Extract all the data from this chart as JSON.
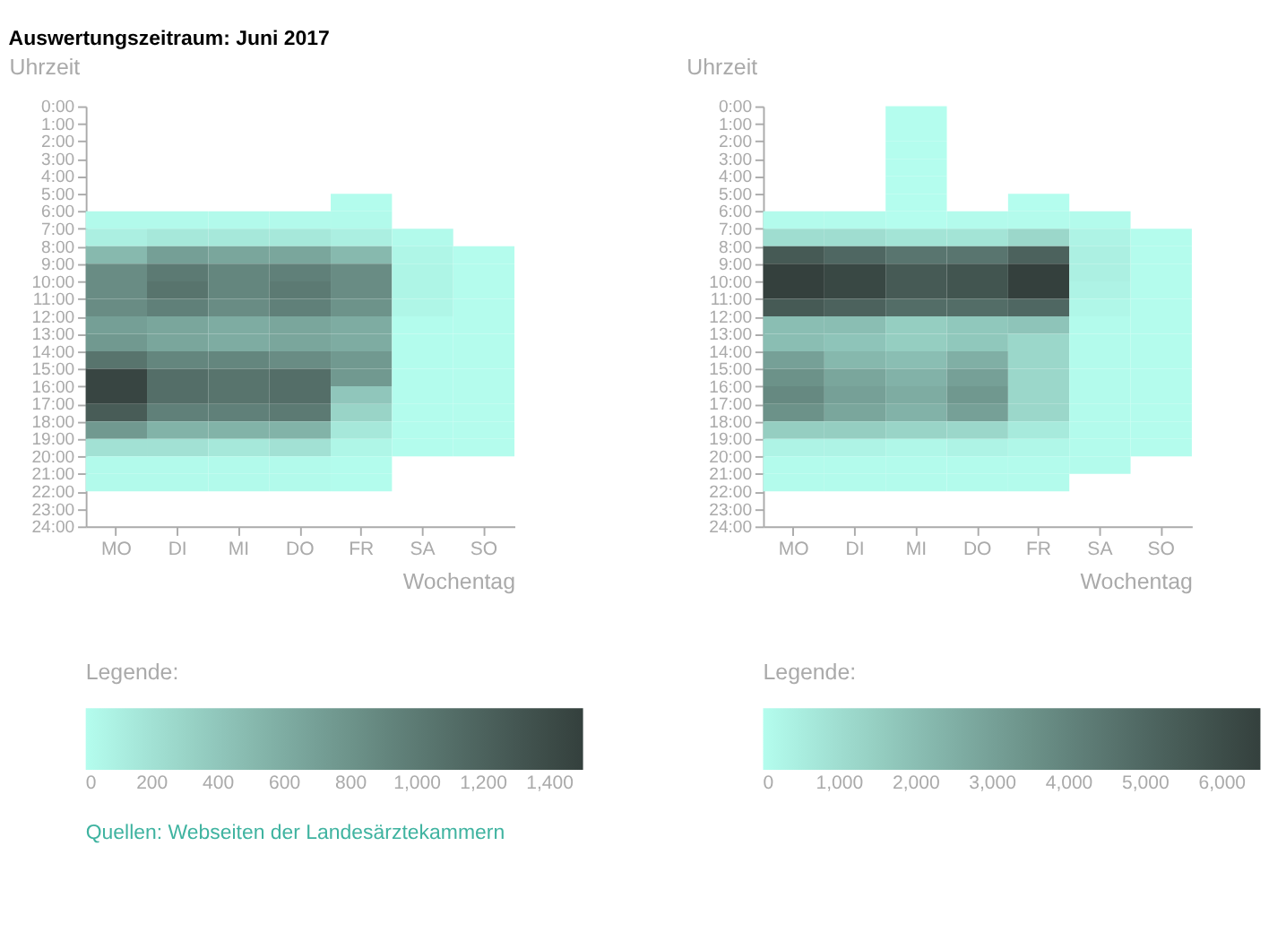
{
  "chart_data": [
    {
      "type": "heatmap",
      "title": "Auswertungszeitraum: Juni 2017",
      "annotations": [
        "Quellen: Webseiten der Landesärztekammern"
      ],
      "ylabel": "Uhrzeit",
      "xlabel": "Wochentag",
      "legend_title": "Legende:",
      "categories": [
        "MO",
        "DI",
        "MI",
        "DO",
        "FR",
        "SA",
        "SO"
      ],
      "y_categories": [
        "0:00",
        "1:00",
        "2:00",
        "3:00",
        "4:00",
        "5:00",
        "6:00",
        "7:00",
        "8:00",
        "9:00",
        "10:00",
        "11:00",
        "12:00",
        "13:00",
        "14:00",
        "15:00",
        "16:00",
        "17:00",
        "18:00",
        "19:00",
        "20:00",
        "21:00",
        "22:00",
        "23:00",
        "24:00"
      ],
      "colors": [
        "#b4fdee",
        "#34403d"
      ],
      "clim": [
        0,
        1500
      ],
      "cticks": [
        0,
        200,
        400,
        600,
        800,
        {
          "value": 1000,
          "label": "1,000"
        },
        {
          "value": 1200,
          "label": "1,200"
        },
        {
          "value": 1400,
          "label": "1,400"
        }
      ],
      "grid": false,
      "cells": [
        [
          null,
          null,
          null,
          null,
          null,
          null,
          null
        ],
        [
          null,
          null,
          null,
          null,
          null,
          null,
          null
        ],
        [
          null,
          null,
          null,
          null,
          null,
          null,
          null
        ],
        [
          null,
          null,
          null,
          null,
          null,
          null,
          null
        ],
        [
          null,
          null,
          null,
          null,
          null,
          null,
          null
        ],
        [
          null,
          null,
          null,
          null,
          10,
          null,
          null
        ],
        [
          20,
          20,
          20,
          20,
          20,
          null,
          null
        ],
        [
          100,
          150,
          150,
          150,
          100,
          20,
          null
        ],
        [
          500,
          700,
          650,
          650,
          500,
          50,
          5
        ],
        [
          850,
          1000,
          900,
          950,
          850,
          60,
          5
        ],
        [
          850,
          1050,
          900,
          1000,
          850,
          60,
          5
        ],
        [
          850,
          950,
          850,
          950,
          800,
          50,
          5
        ],
        [
          700,
          650,
          600,
          650,
          600,
          10,
          5
        ],
        [
          750,
          650,
          600,
          650,
          600,
          10,
          5
        ],
        [
          1050,
          900,
          900,
          850,
          750,
          10,
          5
        ],
        [
          1450,
          1100,
          1050,
          1100,
          750,
          10,
          5
        ],
        [
          1450,
          1100,
          1050,
          1100,
          400,
          10,
          5
        ],
        [
          1250,
          950,
          950,
          1000,
          300,
          10,
          5
        ],
        [
          750,
          550,
          550,
          550,
          150,
          10,
          5
        ],
        [
          200,
          200,
          150,
          200,
          50,
          10,
          5
        ],
        [
          20,
          20,
          20,
          20,
          10,
          null,
          null
        ],
        [
          20,
          20,
          20,
          20,
          10,
          null,
          null
        ],
        [
          null,
          null,
          null,
          null,
          null,
          null,
          null
        ],
        [
          null,
          null,
          null,
          null,
          null,
          null,
          null
        ],
        [
          null,
          null,
          null,
          null,
          null,
          null,
          null
        ]
      ]
    },
    {
      "type": "heatmap",
      "ylabel": "Uhrzeit",
      "xlabel": "Wochentag",
      "legend_title": "Legende:",
      "categories": [
        "MO",
        "DI",
        "MI",
        "DO",
        "FR",
        "SA",
        "SO"
      ],
      "y_categories": [
        "0:00",
        "1:00",
        "2:00",
        "3:00",
        "4:00",
        "5:00",
        "6:00",
        "7:00",
        "8:00",
        "9:00",
        "10:00",
        "11:00",
        "12:00",
        "13:00",
        "14:00",
        "15:00",
        "16:00",
        "17:00",
        "18:00",
        "19:00",
        "20:00",
        "21:00",
        "22:00",
        "23:00",
        "24:00"
      ],
      "colors": [
        "#b4fdee",
        "#34403d"
      ],
      "clim": [
        0,
        6500
      ],
      "cticks": [
        0,
        {
          "value": 1000,
          "label": "1,000"
        },
        {
          "value": 2000,
          "label": "2,000"
        },
        {
          "value": 3000,
          "label": "3,000"
        },
        {
          "value": 4000,
          "label": "4,000"
        },
        {
          "value": 5000,
          "label": "5,000"
        },
        {
          "value": 6000,
          "label": "6,000"
        }
      ],
      "grid": false,
      "cells": [
        [
          null,
          null,
          10,
          null,
          null,
          null,
          null
        ],
        [
          null,
          null,
          10,
          null,
          null,
          null,
          null
        ],
        [
          null,
          null,
          10,
          null,
          null,
          null,
          null
        ],
        [
          null,
          null,
          10,
          null,
          null,
          null,
          null
        ],
        [
          null,
          null,
          10,
          null,
          null,
          null,
          null
        ],
        [
          null,
          null,
          10,
          null,
          10,
          null,
          null
        ],
        [
          50,
          50,
          10,
          50,
          50,
          50,
          null
        ],
        [
          1000,
          1000,
          800,
          800,
          1200,
          300,
          20
        ],
        [
          5500,
          5000,
          4500,
          4500,
          5200,
          400,
          20
        ],
        [
          6500,
          6200,
          5500,
          5700,
          6500,
          400,
          20
        ],
        [
          6500,
          6200,
          5500,
          5700,
          6500,
          300,
          20
        ],
        [
          5500,
          5200,
          4800,
          4800,
          5000,
          200,
          20
        ],
        [
          2000,
          2000,
          1500,
          1700,
          1800,
          50,
          20
        ],
        [
          2000,
          1800,
          1500,
          1700,
          1200,
          50,
          20
        ],
        [
          3000,
          2200,
          2000,
          2500,
          1200,
          50,
          20
        ],
        [
          3500,
          2800,
          2400,
          3000,
          1200,
          50,
          20
        ],
        [
          3800,
          3000,
          2600,
          3300,
          1200,
          50,
          20
        ],
        [
          3500,
          2800,
          2400,
          3000,
          1200,
          50,
          20
        ],
        [
          1500,
          1500,
          1300,
          1200,
          600,
          50,
          20
        ],
        [
          300,
          300,
          200,
          300,
          200,
          50,
          20
        ],
        [
          50,
          50,
          50,
          50,
          50,
          50,
          null
        ],
        [
          50,
          50,
          50,
          50,
          50,
          null,
          null
        ],
        [
          null,
          null,
          null,
          null,
          null,
          null,
          null
        ],
        [
          null,
          null,
          null,
          null,
          null,
          null,
          null
        ],
        [
          null,
          null,
          null,
          null,
          null,
          null,
          null
        ]
      ]
    }
  ]
}
